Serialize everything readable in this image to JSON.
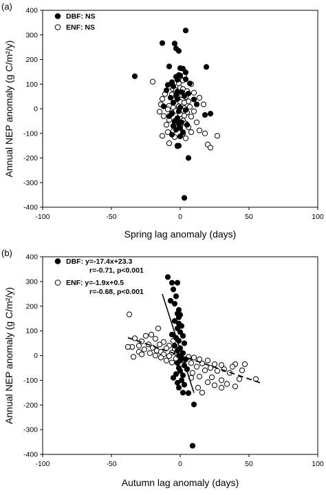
{
  "figure": {
    "panels": [
      {
        "label": "(a)",
        "xlabel": "Spring lag anomaly (days)",
        "ylabel_line": "Annual NEP anomaly (g C/m²/y)"
      },
      {
        "label": "(b)",
        "xlabel": "Autumn lag anomaly (days)",
        "ylabel_line": "Annual NEP anomaly (g C/m²/y)"
      }
    ]
  },
  "chart_data": [
    {
      "type": "scatter",
      "title": "",
      "panel_label": "(a)",
      "xlabel": "Spring lag anomaly (days)",
      "ylabel": "Annual NEP anomaly (g C/m²/y)",
      "xlim": [
        -100,
        100
      ],
      "ylim": [
        -400,
        400
      ],
      "xticks": [
        -100,
        -50,
        0,
        50,
        100
      ],
      "yticks": [
        -400,
        -300,
        -200,
        -100,
        0,
        100,
        200,
        300,
        400
      ],
      "legend_position": "top-left",
      "series": [
        {
          "name": "DBF: NS",
          "marker": "filled-circle",
          "color": "#000000",
          "points": [
            [
              4,
              318
            ],
            [
              -13,
              267
            ],
            [
              -4,
              265
            ],
            [
              -3,
              245
            ],
            [
              -1,
              235
            ],
            [
              19,
              170
            ],
            [
              -33,
              132
            ],
            [
              -8,
              172
            ],
            [
              0,
              165
            ],
            [
              2,
              163
            ],
            [
              4,
              148
            ],
            [
              -1,
              137
            ],
            [
              0,
              135
            ],
            [
              -3,
              130
            ],
            [
              4,
              120
            ],
            [
              -2,
              118
            ],
            [
              -6,
              108
            ],
            [
              7,
              103
            ],
            [
              -9,
              97
            ],
            [
              -5,
              92
            ],
            [
              -10,
              75
            ],
            [
              -2,
              70
            ],
            [
              1,
              68
            ],
            [
              6,
              62
            ],
            [
              -3,
              55
            ],
            [
              3,
              52
            ],
            [
              -7,
              45
            ],
            [
              -2,
              40
            ],
            [
              10,
              38
            ],
            [
              12,
              18
            ],
            [
              -5,
              25
            ],
            [
              -12,
              10
            ],
            [
              0,
              5
            ],
            [
              4,
              -5
            ],
            [
              -1,
              -10
            ],
            [
              -6,
              -18
            ],
            [
              18,
              -25
            ],
            [
              -8,
              -30
            ],
            [
              -2,
              -40
            ],
            [
              -4,
              -50
            ],
            [
              1,
              -55
            ],
            [
              22,
              -20
            ],
            [
              -1,
              -60
            ],
            [
              5,
              -65
            ],
            [
              -5,
              -70
            ],
            [
              0,
              -78
            ],
            [
              -3,
              -85
            ],
            [
              2,
              -95
            ],
            [
              -6,
              -105
            ],
            [
              0,
              -112
            ],
            [
              -1,
              -150
            ],
            [
              -2,
              -152
            ],
            [
              6,
              -200
            ],
            [
              3,
              -362
            ]
          ]
        },
        {
          "name": "ENF: NS",
          "marker": "open-circle",
          "color": "#000000",
          "points": [
            [
              3,
              135
            ],
            [
              -20,
              110
            ],
            [
              2,
              115
            ],
            [
              8,
              100
            ],
            [
              -1,
              103
            ],
            [
              -8,
              90
            ],
            [
              0,
              85
            ],
            [
              2,
              80
            ],
            [
              -5,
              80
            ],
            [
              -3,
              75
            ],
            [
              5,
              72
            ],
            [
              10,
              65
            ],
            [
              -11,
              60
            ],
            [
              -6,
              58
            ],
            [
              1,
              55
            ],
            [
              -2,
              50
            ],
            [
              4,
              48
            ],
            [
              14,
              45
            ],
            [
              -13,
              40
            ],
            [
              -4,
              35
            ],
            [
              6,
              30
            ],
            [
              0,
              28
            ],
            [
              3,
              25
            ],
            [
              17,
              18
            ],
            [
              -14,
              18
            ],
            [
              -8,
              12
            ],
            [
              -1,
              10
            ],
            [
              7,
              8
            ],
            [
              -5,
              5
            ],
            [
              3,
              2
            ],
            [
              -9,
              -2
            ],
            [
              1,
              -5
            ],
            [
              -3,
              -8
            ],
            [
              10,
              -10
            ],
            [
              -15,
              -12
            ],
            [
              5,
              -15
            ],
            [
              -6,
              -20
            ],
            [
              0,
              -22
            ],
            [
              3,
              -28
            ],
            [
              -12,
              -30
            ],
            [
              8,
              -32
            ],
            [
              -2,
              -38
            ],
            [
              -8,
              -45
            ],
            [
              2,
              -48
            ],
            [
              -4,
              -55
            ],
            [
              12,
              -55
            ],
            [
              4,
              -60
            ],
            [
              -10,
              -65
            ],
            [
              0,
              -68
            ],
            [
              6,
              -75
            ],
            [
              -3,
              -80
            ],
            [
              14,
              -88
            ],
            [
              -5,
              -90
            ],
            [
              -9,
              -95
            ],
            [
              8,
              -95
            ],
            [
              2,
              -100
            ],
            [
              18,
              -100
            ],
            [
              -13,
              -110
            ],
            [
              27,
              -110
            ],
            [
              -4,
              -115
            ],
            [
              4,
              -120
            ],
            [
              -8,
              -140
            ],
            [
              20,
              -145
            ],
            [
              -2,
              -150
            ],
            [
              22,
              -158
            ]
          ]
        }
      ]
    },
    {
      "type": "scatter",
      "title": "",
      "panel_label": "(b)",
      "xlabel": "Autumn lag anomaly (days)",
      "ylabel": "Annual NEP anomaly (g C/m²/y)",
      "xlim": [
        -100,
        100
      ],
      "ylim": [
        -400,
        400
      ],
      "xticks": [
        -100,
        -50,
        0,
        50,
        100
      ],
      "yticks": [
        -400,
        -300,
        -200,
        -100,
        0,
        100,
        200,
        300,
        400
      ],
      "legend_position": "top-left",
      "series": [
        {
          "name": "DBF",
          "legend_lines": [
            "DBF: y=-17.4x+23.3",
            "r=-0.71, p<0.001"
          ],
          "marker": "filled-circle",
          "color": "#000000",
          "points": [
            [
              -9,
              318
            ],
            [
              -6,
              295
            ],
            [
              -2,
              295
            ],
            [
              -5,
              268
            ],
            [
              -3,
              240
            ],
            [
              -7,
              222
            ],
            [
              -4,
              210
            ],
            [
              -1,
              185
            ],
            [
              -2,
              170
            ],
            [
              0,
              165
            ],
            [
              -1,
              155
            ],
            [
              -4,
              140
            ],
            [
              -1,
              130
            ],
            [
              1,
              120
            ],
            [
              -2,
              110
            ],
            [
              0,
              95
            ],
            [
              -6,
              85
            ],
            [
              2,
              80
            ],
            [
              -3,
              72
            ],
            [
              -1,
              60
            ],
            [
              3,
              50
            ],
            [
              -4,
              40
            ],
            [
              0,
              30
            ],
            [
              -2,
              20
            ],
            [
              2,
              10
            ],
            [
              -1,
              0
            ],
            [
              1,
              -10
            ],
            [
              4,
              -15
            ],
            [
              0,
              -20
            ],
            [
              -2,
              -30
            ],
            [
              3,
              -40
            ],
            [
              -1,
              -50
            ],
            [
              5,
              -55
            ],
            [
              0,
              -62
            ],
            [
              -3,
              -75
            ],
            [
              2,
              -80
            ],
            [
              -5,
              -90
            ],
            [
              1,
              -100
            ],
            [
              -2,
              -110
            ],
            [
              3,
              -118
            ],
            [
              -1,
              -130
            ],
            [
              2,
              -150
            ],
            [
              6,
              -152
            ],
            [
              10,
              -198
            ],
            [
              9,
              -365
            ]
          ]
        },
        {
          "name": "ENF",
          "legend_lines": [
            "ENF: y=-1.9x+0.5",
            "r=-0.68, p<0.001"
          ],
          "marker": "open-circle",
          "color": "#000000",
          "points": [
            [
              -37,
              167
            ],
            [
              -16,
              110
            ],
            [
              -21,
              85
            ],
            [
              -25,
              80
            ],
            [
              -33,
              70
            ],
            [
              -18,
              68
            ],
            [
              -28,
              58
            ],
            [
              -12,
              55
            ],
            [
              -5,
              60
            ],
            [
              -23,
              45
            ],
            [
              -15,
              45
            ],
            [
              -30,
              40
            ],
            [
              -8,
              40
            ],
            [
              -35,
              35
            ],
            [
              -20,
              32
            ],
            [
              -10,
              30
            ],
            [
              -26,
              25
            ],
            [
              -4,
              28
            ],
            [
              -17,
              20
            ],
            [
              -30,
              15
            ],
            [
              -14,
              15
            ],
            [
              -38,
              35
            ],
            [
              -22,
              10
            ],
            [
              -6,
              12
            ],
            [
              -12,
              5
            ],
            [
              -28,
              5
            ],
            [
              -2,
              5
            ],
            [
              -18,
              0
            ],
            [
              -8,
              -2
            ],
            [
              -34,
              -5
            ],
            [
              -14,
              -8
            ],
            [
              6,
              -5
            ],
            [
              10,
              -8
            ],
            [
              -3,
              -12
            ],
            [
              14,
              -15
            ],
            [
              -10,
              -20
            ],
            [
              3,
              -20
            ],
            [
              20,
              -20
            ],
            [
              -6,
              -28
            ],
            [
              8,
              -30
            ],
            [
              16,
              -32
            ],
            [
              25,
              -35
            ],
            [
              30,
              -38
            ],
            [
              40,
              -35
            ],
            [
              47,
              -35
            ],
            [
              38,
              -45
            ],
            [
              12,
              -45
            ],
            [
              22,
              -50
            ],
            [
              5,
              -55
            ],
            [
              32,
              -55
            ],
            [
              18,
              -60
            ],
            [
              45,
              -60
            ],
            [
              27,
              -62
            ],
            [
              9,
              -70
            ],
            [
              36,
              -70
            ],
            [
              55,
              -95
            ],
            [
              14,
              -85
            ],
            [
              23,
              -88
            ],
            [
              43,
              -95
            ],
            [
              30,
              -100
            ],
            [
              20,
              -108
            ],
            [
              34,
              -115
            ],
            [
              13,
              -130
            ],
            [
              40,
              -125
            ],
            [
              8,
              -90
            ],
            [
              25,
              -120
            ],
            [
              16,
              -150
            ],
            [
              30,
              -130
            ]
          ]
        }
      ],
      "fit_lines": [
        {
          "series": "DBF",
          "style": "solid",
          "x": [
            -13,
            10
          ]
        },
        {
          "series": "ENF",
          "style": "dashed",
          "x": [
            -38,
            58
          ]
        }
      ]
    }
  ]
}
